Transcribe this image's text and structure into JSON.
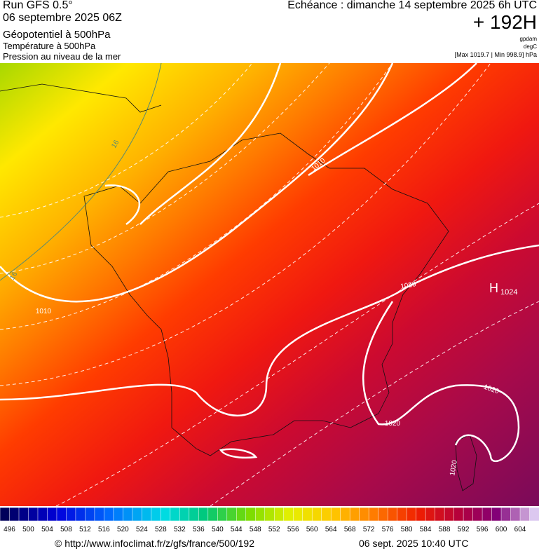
{
  "header": {
    "run": "Run GFS 0.5°",
    "date": "06 septembre 2025 06Z",
    "fields": [
      "Géopotentiel à 500hPa",
      "Température à 500hPa",
      "Pression au niveau de la mer"
    ],
    "echeance": "Echéance : dimanche 14 septembre 2025 6h UTC",
    "lead": "+ 192H",
    "units": [
      "gpdam",
      "degC"
    ],
    "range": "[Max 1019.7 | Min 998.9] hPa"
  },
  "map": {
    "contour_labels": [
      "16",
      "16",
      "1010",
      "1010",
      "1020",
      "1020",
      "1020",
      "1020"
    ],
    "high": {
      "symbol": "H",
      "value": "1024"
    }
  },
  "colorbar": {
    "labels": [
      496,
      500,
      504,
      508,
      512,
      516,
      520,
      524,
      528,
      532,
      536,
      540,
      544,
      548,
      552,
      556,
      560,
      564,
      568,
      572,
      576,
      580,
      584,
      588,
      592,
      596,
      600,
      604
    ]
  },
  "footer": {
    "url": "© http://www.infoclimat.fr/z/gfs/france/500/192",
    "timestamp": "06 sept. 2025 10:40 UTC"
  }
}
